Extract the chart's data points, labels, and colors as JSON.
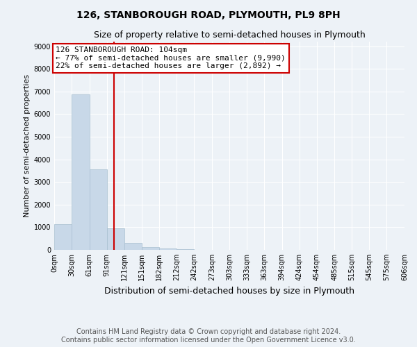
{
  "title": "126, STANBOROUGH ROAD, PLYMOUTH, PL9 8PH",
  "subtitle": "Size of property relative to semi-detached houses in Plymouth",
  "xlabel": "Distribution of semi-detached houses by size in Plymouth",
  "ylabel": "Number of semi-detached properties",
  "bar_color": "#c8d8e8",
  "bar_edge_color": "#a8bfd0",
  "property_line_color": "#cc0000",
  "property_value": 104,
  "annotation_line1": "126 STANBOROUGH ROAD: 104sqm",
  "annotation_line2": "← 77% of semi-detached houses are smaller (9,990)",
  "annotation_line3": "22% of semi-detached houses are larger (2,892) →",
  "bins": [
    0,
    30,
    61,
    91,
    121,
    151,
    182,
    212,
    242,
    273,
    303,
    333,
    363,
    394,
    424,
    454,
    485,
    515,
    545,
    575,
    606
  ],
  "bin_labels": [
    "0sqm",
    "30sqm",
    "61sqm",
    "91sqm",
    "121sqm",
    "151sqm",
    "182sqm",
    "212sqm",
    "242sqm",
    "273sqm",
    "303sqm",
    "333sqm",
    "363sqm",
    "394sqm",
    "424sqm",
    "454sqm",
    "485sqm",
    "515sqm",
    "545sqm",
    "575sqm",
    "606sqm"
  ],
  "bar_heights": [
    1130,
    6880,
    3570,
    960,
    300,
    110,
    60,
    30,
    10,
    5,
    2,
    1,
    0,
    0,
    0,
    0,
    0,
    0,
    0,
    0
  ],
  "ylim": [
    0,
    9200
  ],
  "yticks": [
    0,
    1000,
    2000,
    3000,
    4000,
    5000,
    6000,
    7000,
    8000,
    9000
  ],
  "background_color": "#edf2f7",
  "plot_bg_color": "#edf2f7",
  "footer_text": "Contains HM Land Registry data © Crown copyright and database right 2024.\nContains public sector information licensed under the Open Government Licence v3.0.",
  "title_fontsize": 10,
  "subtitle_fontsize": 9,
  "xlabel_fontsize": 9,
  "ylabel_fontsize": 8,
  "annotation_fontsize": 8,
  "footer_fontsize": 7,
  "tick_fontsize": 7
}
